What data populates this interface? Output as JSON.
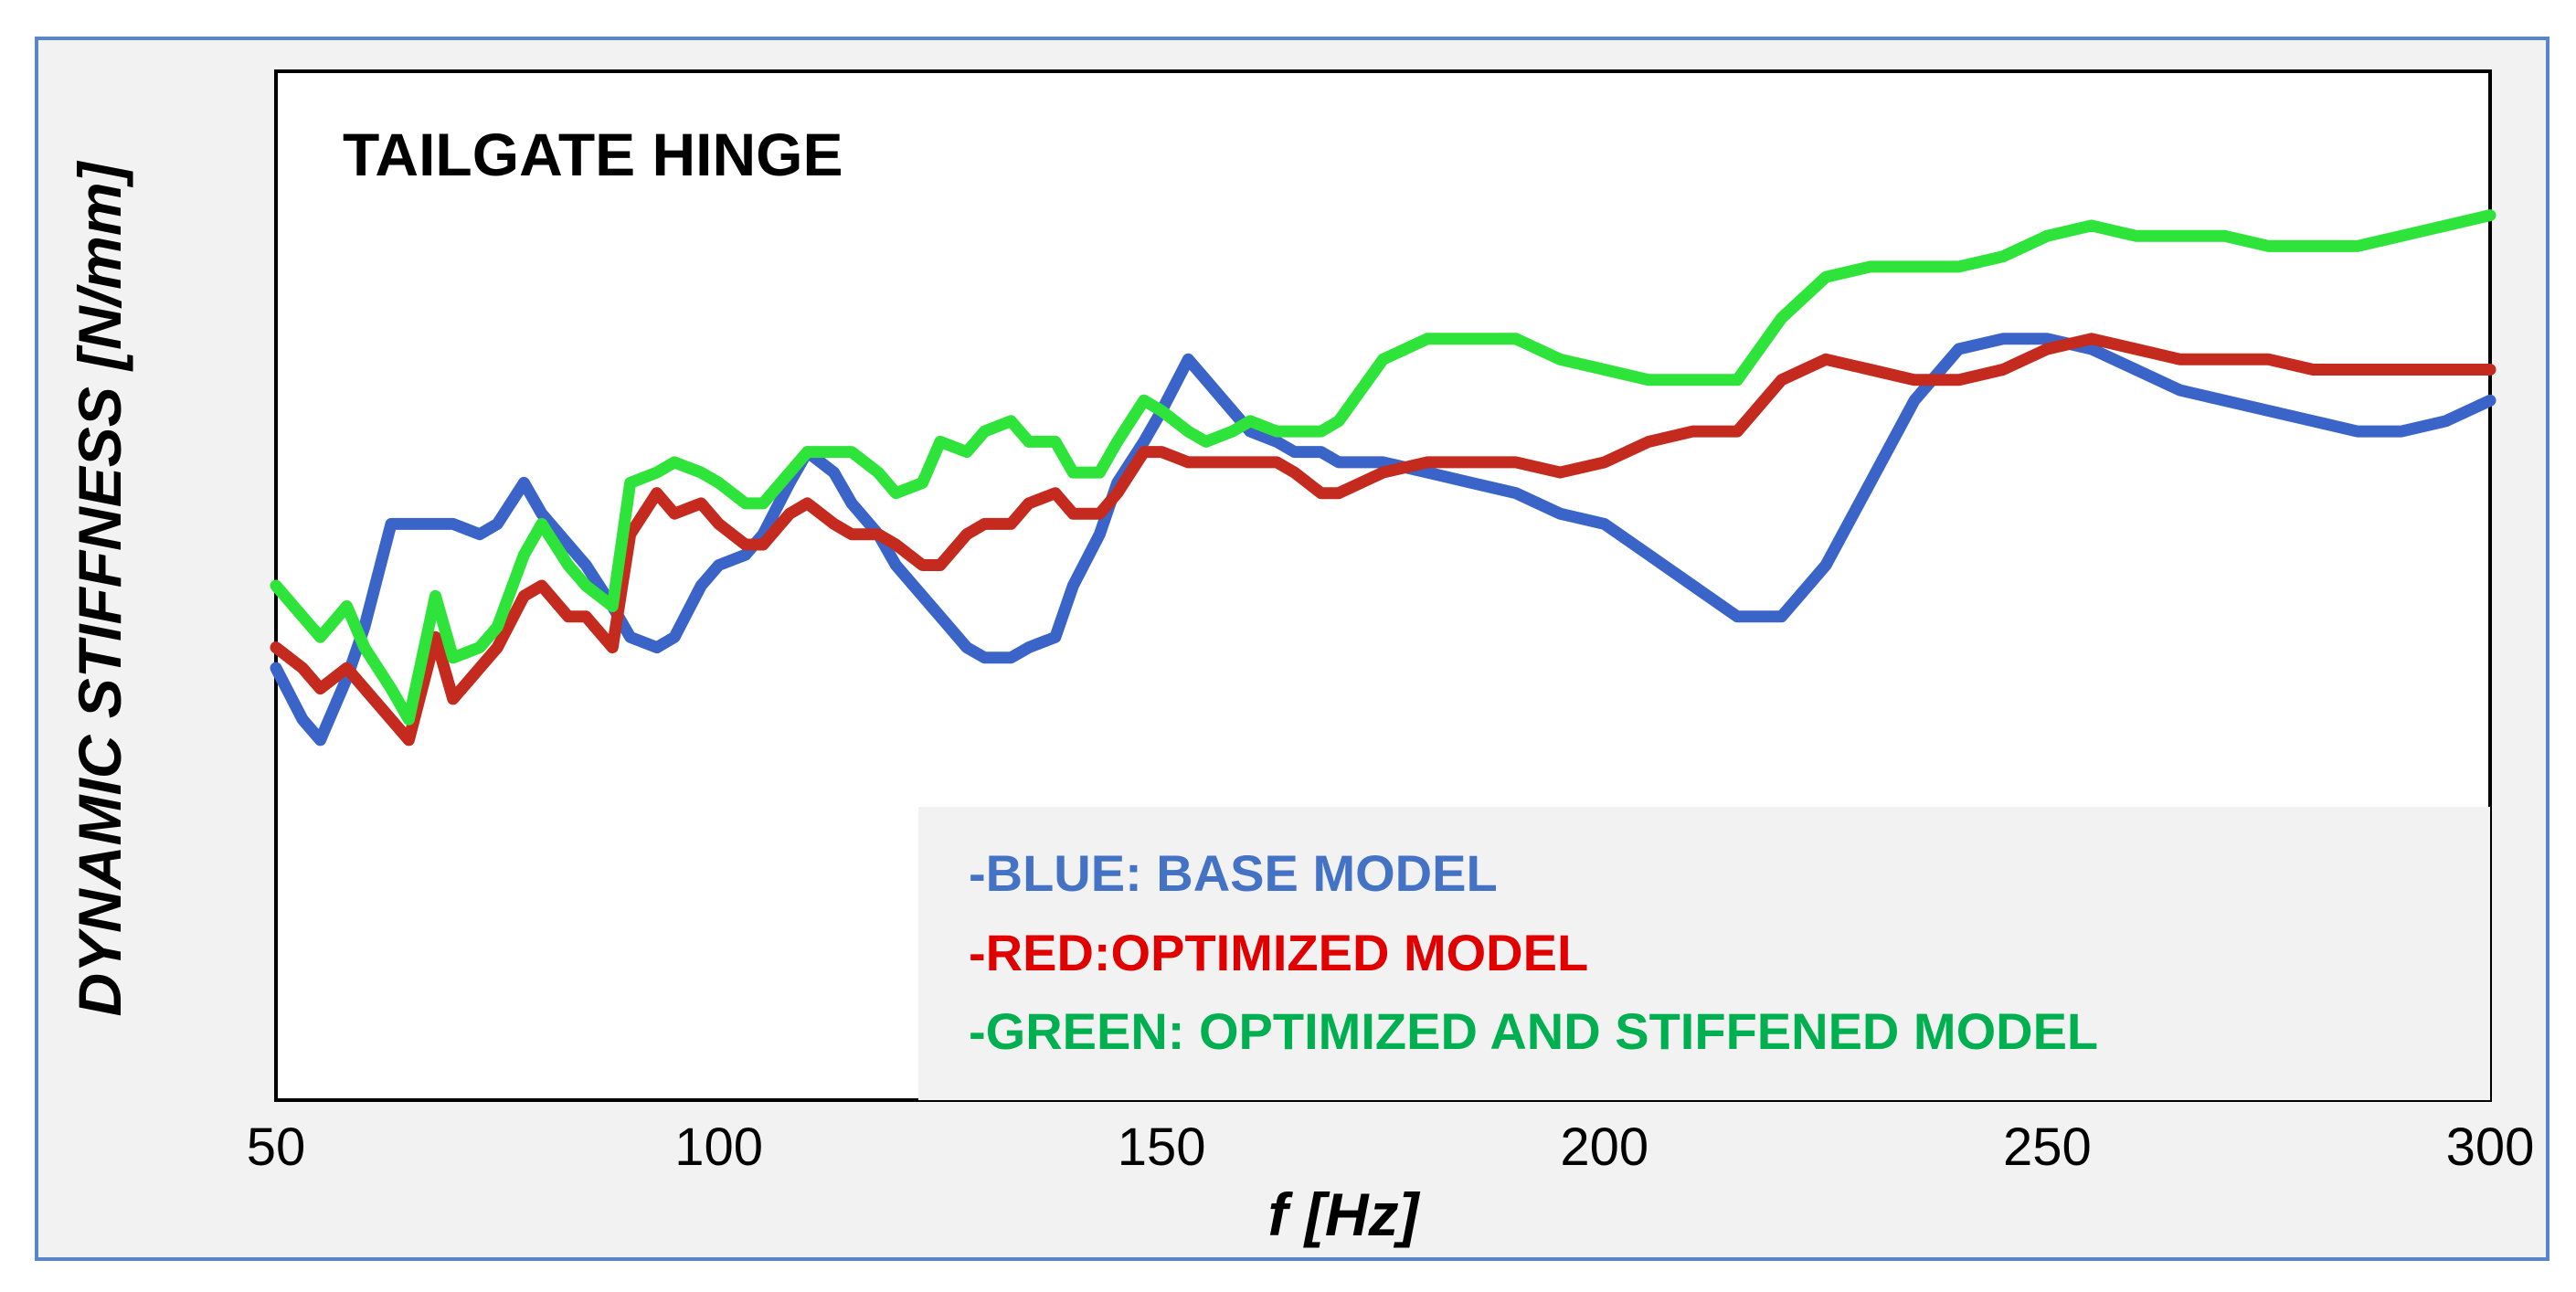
{
  "chart_data": {
    "type": "line",
    "title": "TAILGATE HINGE",
    "xlabel": "f [Hz]",
    "ylabel": "DYNAMIC STIFFNESS [N/mm]",
    "xlim": [
      50,
      300
    ],
    "ylim": [
      0,
      100
    ],
    "x_ticks": [
      "50",
      "100",
      "150",
      "200",
      "250",
      "300"
    ],
    "grid": true,
    "legend_position": "bottom-right",
    "legend": [
      {
        "label": "-BLUE: BASE MODEL",
        "color": "#4472c4"
      },
      {
        "label": "-RED:OPTIMIZED MODEL",
        "color": "#e00000"
      },
      {
        "label": "-GREEN: OPTIMIZED AND STIFFENED MODEL",
        "color": "#00b050"
      }
    ],
    "series": [
      {
        "color": "#3b64c8",
        "x": [
          50,
          53,
          55,
          58,
          60,
          63,
          65,
          68,
          70,
          73,
          75,
          78,
          80,
          83,
          85,
          88,
          90,
          93,
          95,
          98,
          100,
          103,
          105,
          108,
          110,
          113,
          115,
          118,
          120,
          123,
          125,
          128,
          130,
          133,
          135,
          138,
          140,
          143,
          145,
          148,
          150,
          153,
          155,
          158,
          160,
          163,
          165,
          168,
          170,
          175,
          180,
          185,
          190,
          195,
          200,
          205,
          210,
          215,
          220,
          225,
          230,
          235,
          240,
          245,
          250,
          255,
          260,
          265,
          270,
          275,
          280,
          285,
          290,
          295,
          300
        ],
        "y": [
          42,
          37,
          35,
          41,
          46,
          56,
          56,
          56,
          56,
          55,
          56,
          60,
          57,
          54,
          52,
          48,
          45,
          44,
          45,
          50,
          52,
          53,
          55,
          60,
          63,
          61,
          58,
          55,
          52,
          49,
          47,
          44,
          43,
          43,
          44,
          45,
          50,
          55,
          60,
          64,
          67,
          72,
          70,
          67,
          65,
          64,
          63,
          63,
          62,
          62,
          61,
          60,
          59,
          57,
          56,
          53,
          50,
          47,
          47,
          52,
          60,
          68,
          73,
          74,
          74,
          73,
          71,
          69,
          68,
          67,
          66,
          65,
          65,
          66,
          68
        ]
      },
      {
        "color": "#c42a1e",
        "x": [
          50,
          53,
          55,
          58,
          60,
          63,
          65,
          68,
          70,
          73,
          75,
          78,
          80,
          83,
          85,
          88,
          90,
          93,
          95,
          98,
          100,
          103,
          105,
          108,
          110,
          113,
          115,
          118,
          120,
          123,
          125,
          128,
          130,
          133,
          135,
          138,
          140,
          143,
          145,
          148,
          150,
          153,
          155,
          158,
          160,
          163,
          165,
          168,
          170,
          175,
          180,
          185,
          190,
          195,
          200,
          205,
          210,
          215,
          220,
          225,
          230,
          235,
          240,
          245,
          250,
          255,
          260,
          265,
          270,
          275,
          280,
          285,
          290,
          295,
          300
        ],
        "y": [
          44,
          42,
          40,
          42,
          40,
          37,
          35,
          45,
          39,
          42,
          44,
          49,
          50,
          47,
          47,
          44,
          55,
          59,
          57,
          58,
          56,
          54,
          54,
          57,
          58,
          56,
          55,
          55,
          54,
          52,
          52,
          55,
          56,
          56,
          58,
          59,
          57,
          57,
          59,
          63,
          63,
          62,
          62,
          62,
          62,
          62,
          61,
          59,
          59,
          61,
          62,
          62,
          62,
          61,
          62,
          64,
          65,
          65,
          70,
          72,
          71,
          70,
          70,
          71,
          73,
          74,
          73,
          72,
          72,
          72,
          71,
          71,
          71,
          71,
          71
        ]
      },
      {
        "color": "#2ee43a",
        "x": [
          50,
          53,
          55,
          58,
          60,
          63,
          65,
          68,
          70,
          73,
          75,
          78,
          80,
          83,
          85,
          88,
          90,
          93,
          95,
          98,
          100,
          103,
          105,
          108,
          110,
          113,
          115,
          118,
          120,
          123,
          125,
          128,
          130,
          133,
          135,
          138,
          140,
          143,
          145,
          148,
          150,
          153,
          155,
          158,
          160,
          163,
          165,
          168,
          170,
          175,
          180,
          185,
          190,
          195,
          200,
          205,
          210,
          215,
          220,
          225,
          230,
          235,
          240,
          245,
          250,
          255,
          260,
          265,
          270,
          275,
          280,
          285,
          290,
          295,
          300
        ],
        "y": [
          50,
          47,
          45,
          48,
          44,
          40,
          37,
          49,
          43,
          44,
          46,
          53,
          56,
          52,
          50,
          48,
          60,
          61,
          62,
          61,
          60,
          58,
          58,
          61,
          63,
          63,
          63,
          61,
          59,
          60,
          64,
          63,
          65,
          66,
          64,
          64,
          61,
          61,
          64,
          68,
          67,
          65,
          64,
          65,
          66,
          65,
          65,
          65,
          66,
          72,
          74,
          74,
          74,
          72,
          71,
          70,
          70,
          70,
          76,
          80,
          81,
          81,
          81,
          82,
          84,
          85,
          84,
          84,
          84,
          83,
          83,
          83,
          84,
          85,
          86
        ]
      }
    ]
  }
}
